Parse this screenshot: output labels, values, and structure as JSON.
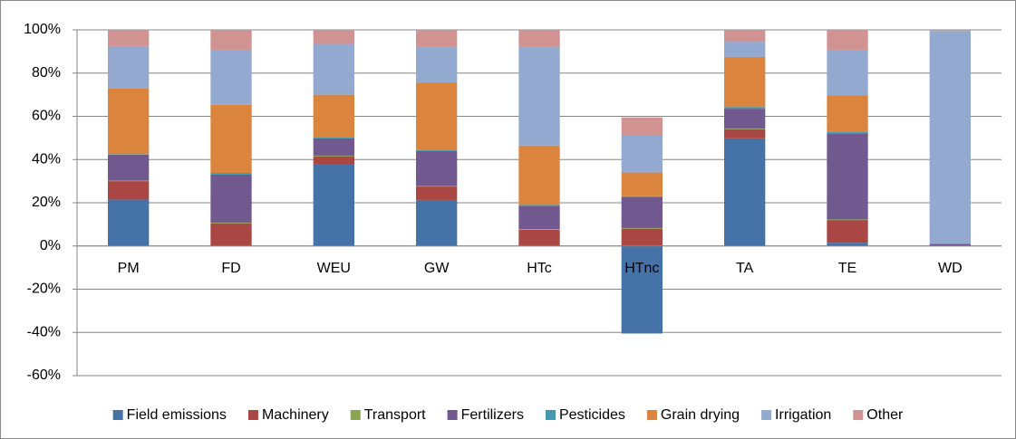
{
  "chart_data": {
    "type": "stacked_bar",
    "categories": [
      "PM",
      "FD",
      "WEU",
      "GW",
      "HTc",
      "HTnc",
      "TA",
      "TE",
      "WD"
    ],
    "series": [
      {
        "name": "Field emissions",
        "color": "#4572a7",
        "values": [
          21.5,
          0,
          38,
          21.3,
          0,
          -40.5,
          49.8,
          1.5,
          0
        ]
      },
      {
        "name": "Machinery",
        "color": "#aa4643",
        "values": [
          8.5,
          10.5,
          3.5,
          6.2,
          7.5,
          8,
          4.2,
          10.5,
          0
        ]
      },
      {
        "name": "Transport",
        "color": "#89a54e",
        "values": [
          0.3,
          0.3,
          0.3,
          0.3,
          0.3,
          0.3,
          0.3,
          0.3,
          0
        ]
      },
      {
        "name": "Fertilizers",
        "color": "#71588f",
        "values": [
          12,
          22.2,
          8,
          16.2,
          10.7,
          14.2,
          9.2,
          39.7,
          1
        ]
      },
      {
        "name": "Pesticides",
        "color": "#4198af",
        "values": [
          0.2,
          0.8,
          0.7,
          0.3,
          0.5,
          0.5,
          0.8,
          0.8,
          0
        ]
      },
      {
        "name": "Grain drying",
        "color": "#db843d",
        "values": [
          30.3,
          31.5,
          19.5,
          31.2,
          27.5,
          11,
          23.2,
          17,
          0
        ]
      },
      {
        "name": "Irrigation",
        "color": "#93a9cf",
        "values": [
          19.7,
          25.5,
          23.5,
          16.5,
          45.5,
          17,
          7,
          21,
          98.5
        ]
      },
      {
        "name": "Other",
        "color": "#d19392",
        "values": [
          7.5,
          9.2,
          6.5,
          8,
          8,
          8.5,
          5.5,
          9.2,
          0.5
        ]
      }
    ],
    "ylim": [
      -60,
      100
    ],
    "yticks": [
      {
        "value": -60,
        "label": "-60%"
      },
      {
        "value": -40,
        "label": "-40%"
      },
      {
        "value": -20,
        "label": "-20%"
      },
      {
        "value": 0,
        "label": "0%"
      },
      {
        "value": 20,
        "label": "20%"
      },
      {
        "value": 40,
        "label": "40%"
      },
      {
        "value": 60,
        "label": "60%"
      },
      {
        "value": 80,
        "label": "80%"
      },
      {
        "value": 100,
        "label": "100%"
      }
    ],
    "grid": true
  }
}
